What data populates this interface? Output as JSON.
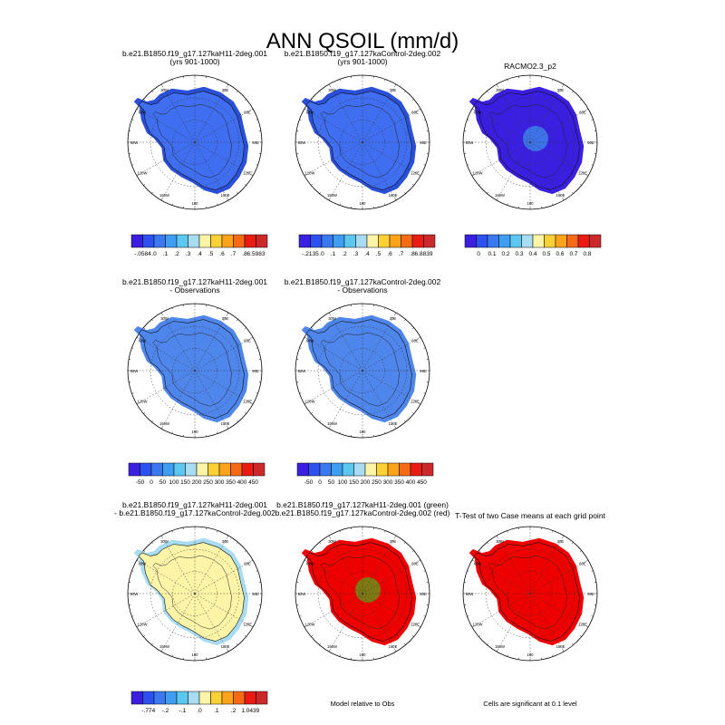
{
  "figure": {
    "title": "ANN QSOIL (mm/d)"
  },
  "panels": [
    {
      "id": "case1",
      "title_lines": [
        "b.e21.B1850.f19_g17.127kaH11-2deg.001",
        "(yrs 901-1000)"
      ],
      "fill": "#3f6ef0",
      "edge": "#2a4fd8"
    },
    {
      "id": "case2",
      "title_lines": [
        "b.e21.B1850.f19_g17.127kaControl-2deg.002",
        "(yrs 901-1000)"
      ],
      "fill": "#3f6ef0",
      "edge": "#2a4fd8"
    },
    {
      "id": "obs",
      "title_lines": [
        "RACMO2.3_p2"
      ],
      "fill": "#3a1fe0",
      "edge": "#3a1fe0",
      "highlight": "#3fb8f0"
    },
    {
      "id": "case1-obs",
      "title_lines": [
        "b.e21.B1850.f19_g17.127kaH11-2deg.001",
        "- Observations"
      ],
      "fill": "#4f86ec",
      "edge": "#4f86ec"
    },
    {
      "id": "case2-obs",
      "title_lines": [
        "b.e21.B1850.f19_g17.127kaControl-2deg.002",
        "- Observations"
      ],
      "fill": "#4f86ec",
      "edge": "#4f86ec"
    },
    {
      "id": "diff",
      "title_lines": [
        "b.e21.B1850.f19_g17.127kaH11-2deg.001",
        "- b.e21.B1850.f19_g17.127kaControl-2deg.002"
      ],
      "fill": "#fdf4a8",
      "edge": "#a8dcf2"
    },
    {
      "id": "relative",
      "title_lines": [
        "b.e21.B1850.f19_g17.127kaH11-2deg.001 (green)",
        "b.e21.B1850.f19_g17.127kaControl-2deg.002 (red)"
      ],
      "fill": "#ee0000",
      "edge": "#ee0000",
      "highlight": "#22dd22"
    },
    {
      "id": "ttest",
      "title_lines": [
        "T-Test of two Case means at each grid point"
      ],
      "fill": "#ee0000",
      "edge": "#ee0000"
    }
  ],
  "map_labels": {
    "lon": [
      "30W",
      "30E",
      "60W",
      "60E",
      "90W",
      "90E",
      "120W",
      "120E",
      "150W",
      "150E",
      "180"
    ]
  },
  "colorbars": [
    {
      "id": "cb1",
      "colors": [
        "#3a1fe0",
        "#2d50f0",
        "#3a78f0",
        "#3f9ef0",
        "#5cc8f0",
        "#a8dcf2",
        "#fdf4a8",
        "#fdd035",
        "#fba31a",
        "#f56a15",
        "#e81c12",
        "#cc2a2a"
      ],
      "labels": [
        "-.0584",
        ".0",
        ".1",
        ".2",
        ".3",
        ".4",
        ".5",
        ".6",
        ".7",
        ".8",
        "6.5983"
      ]
    },
    {
      "id": "cb2",
      "colors": [
        "#3a1fe0",
        "#2d50f0",
        "#3a78f0",
        "#3f9ef0",
        "#5cc8f0",
        "#a8dcf2",
        "#fdf4a8",
        "#fdd035",
        "#fba31a",
        "#f56a15",
        "#e81c12",
        "#cc2a2a"
      ],
      "labels": [
        "-.2135",
        ".0",
        ".1",
        ".2",
        ".3",
        ".4",
        ".5",
        ".6",
        ".7",
        ".8",
        "6.8839"
      ]
    },
    {
      "id": "cb3",
      "colors": [
        "#3a1fe0",
        "#2d50f0",
        "#3a78f0",
        "#3f9ef0",
        "#5cc8f0",
        "#a8dcf2",
        "#fdf4a8",
        "#fdd035",
        "#fba31a",
        "#f56a15",
        "#e81c12",
        "#cc2a2a"
      ],
      "labels": [
        "0",
        "0.1",
        "0.2",
        "0.3",
        "0.4",
        "0.5",
        "0.6",
        "0.7",
        "0.8"
      ]
    },
    {
      "id": "cb4",
      "colors": [
        "#3a1fe0",
        "#2d50f0",
        "#3a78f0",
        "#3f9ef0",
        "#5cc8f0",
        "#a8dcf2",
        "#fdf4a8",
        "#fdd035",
        "#fba31a",
        "#f56a15",
        "#e81c12",
        "#cc2a2a"
      ],
      "labels": [
        "-50",
        "0",
        "50",
        "100",
        "150",
        "200",
        "250",
        "300",
        "350",
        "400",
        "450"
      ]
    },
    {
      "id": "cb5",
      "colors": [
        "#3a1fe0",
        "#2d50f0",
        "#3a78f0",
        "#3f9ef0",
        "#5cc8f0",
        "#a8dcf2",
        "#fdf4a8",
        "#fdd035",
        "#fba31a",
        "#f56a15",
        "#e81c12",
        "#cc2a2a"
      ],
      "labels": [
        "-50",
        "0",
        "50",
        "100",
        "150",
        "200",
        "250",
        "300",
        "350",
        "400",
        "450"
      ]
    },
    {
      "id": "cb6",
      "colors": [
        "#3a1fe0",
        "#2d50f0",
        "#3a78f0",
        "#3f9ef0",
        "#5cc8f0",
        "#a8dcf2",
        "#fdf4a8",
        "#fdd035",
        "#fba31a",
        "#f56a15",
        "#e81c12",
        "#cc2a2a"
      ],
      "labels": [
        "-.774",
        "-.2",
        "-.1",
        ".0",
        ".1",
        ".2",
        "1.0439"
      ]
    }
  ],
  "captions": {
    "relative": "Model relative to Obs",
    "ttest": "Cells are significant at 0.1 level"
  }
}
